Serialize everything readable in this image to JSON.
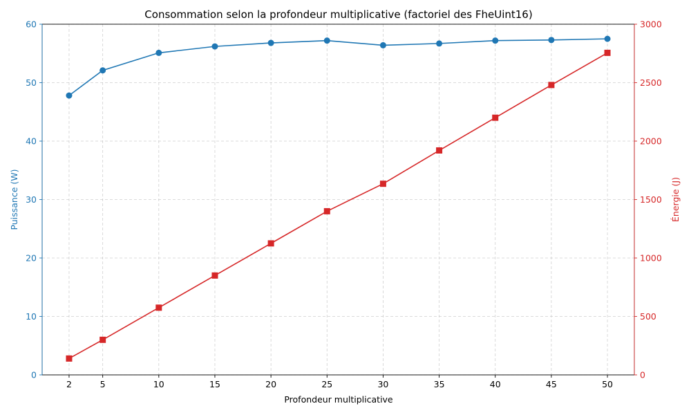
{
  "chart_data": {
    "type": "line",
    "title": "Consommation selon la profondeur multiplicative (factoriel des FheUint16)",
    "xlabel": "Profondeur multiplicative",
    "ylabel_left": "Puissance (W)",
    "ylabel_right": "Énergie (J)",
    "x": [
      2,
      5,
      10,
      15,
      20,
      25,
      30,
      35,
      40,
      45,
      50
    ],
    "xlim": [
      -0.4,
      52.4
    ],
    "xticks": [
      "2",
      "5",
      "10",
      "15",
      "20",
      "25",
      "30",
      "35",
      "40",
      "45",
      "50"
    ],
    "ylim_left": [
      0,
      60
    ],
    "yticks_left": [
      "0",
      "10",
      "20",
      "30",
      "40",
      "50",
      "60"
    ],
    "ylim_right": [
      0,
      3000
    ],
    "yticks_right": [
      "0",
      "500",
      "1000",
      "1500",
      "2000",
      "2500",
      "3000"
    ],
    "grid": true,
    "series": [
      {
        "axis": "left",
        "color": "#1f77b4",
        "marker": "circle",
        "values": [
          47.8,
          52.1,
          55.1,
          56.2,
          56.8,
          57.2,
          56.4,
          56.7,
          57.2,
          57.3,
          57.5
        ]
      },
      {
        "axis": "right",
        "color": "#d62728",
        "marker": "square",
        "values": [
          140,
          300,
          575,
          850,
          1125,
          1400,
          1635,
          1920,
          2200,
          2480,
          2755
        ]
      }
    ]
  }
}
